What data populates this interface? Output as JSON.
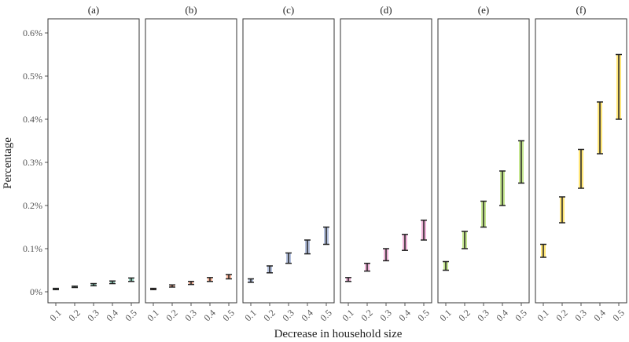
{
  "chart_data": {
    "type": "errorbar-panels",
    "xlabel": "Decrease in household size",
    "ylabel": "Percentage",
    "ylim": [
      0,
      0.0064
    ],
    "y_ticks": [
      {
        "value": 0,
        "label": "0%"
      },
      {
        "value": 0.001,
        "label": "0.1%"
      },
      {
        "value": 0.002,
        "label": "0.2%"
      },
      {
        "value": 0.003,
        "label": "0.3%"
      },
      {
        "value": 0.004,
        "label": "0.4%"
      },
      {
        "value": 0.005,
        "label": "0.5%"
      },
      {
        "value": 0.006,
        "label": "0.6%"
      }
    ],
    "categories": [
      "0.1",
      "0.2",
      "0.3",
      "0.4",
      "0.5"
    ],
    "panels": [
      {
        "label": "(a)",
        "color": "#66c2a5",
        "low": [
          5e-05,
          0.0001,
          0.00014,
          0.00019,
          0.00024
        ],
        "high": [
          8e-05,
          0.00013,
          0.00019,
          0.00025,
          0.00032
        ]
      },
      {
        "label": "(b)",
        "color": "#fc8d62",
        "low": [
          5e-05,
          0.00011,
          0.00017,
          0.00024,
          0.0003
        ],
        "high": [
          8e-05,
          0.00016,
          0.00024,
          0.00033,
          0.0004
        ]
      },
      {
        "label": "(c)",
        "color": "#8da0cb",
        "low": [
          0.00022,
          0.00044,
          0.00066,
          0.00088,
          0.0011
        ],
        "high": [
          0.0003,
          0.0006,
          0.0009,
          0.0012,
          0.0015
        ]
      },
      {
        "label": "(d)",
        "color": "#e78ac3",
        "low": [
          0.00024,
          0.00048,
          0.00072,
          0.00096,
          0.0012
        ],
        "high": [
          0.00033,
          0.00066,
          0.001,
          0.00133,
          0.00166
        ]
      },
      {
        "label": "(e)",
        "color": "#a6d854",
        "low": [
          0.0005,
          0.001,
          0.0015,
          0.002,
          0.00252
        ],
        "high": [
          0.0007,
          0.0014,
          0.0021,
          0.0028,
          0.0035
        ]
      },
      {
        "label": "(f)",
        "color": "#ffd92f",
        "low": [
          0.0008,
          0.0016,
          0.0024,
          0.0032,
          0.004
        ],
        "high": [
          0.0011,
          0.0022,
          0.0033,
          0.0044,
          0.0055
        ]
      }
    ]
  }
}
